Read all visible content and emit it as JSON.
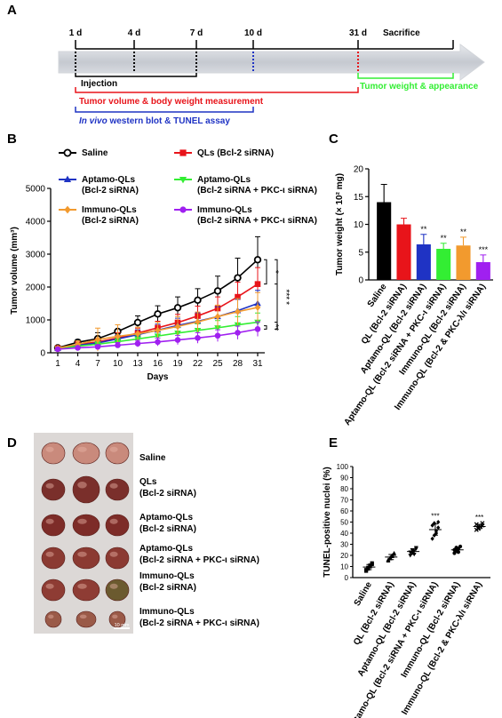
{
  "panel_labels": {
    "a": "A",
    "b": "B",
    "c": "C",
    "d": "D",
    "e": "E"
  },
  "colors": {
    "saline": "#000000",
    "qls": "#e8141a",
    "aptamo": "#1f33c4",
    "aptamo_pkc": "#33ee33",
    "immuno": "#f29a2e",
    "immuno_pkc": "#a020f0",
    "injection": "#000000",
    "measurement": "#e8141a",
    "western": "#1f33c4",
    "tumor_weight": "#33ee33"
  },
  "timeline": {
    "days": [
      {
        "label": "1 d",
        "color": "#000000"
      },
      {
        "label": "4 d",
        "color": "#000000"
      },
      {
        "label": "7 d",
        "color": "#000000"
      },
      {
        "label": "10 d",
        "color": "#1f33c4"
      },
      {
        "label": "31 d",
        "color": "#e8141a"
      }
    ],
    "sacrifice": "Sacrifice",
    "injection": "Injection",
    "measurement": "Tumor volume & body weight measurement",
    "western_italic": "In vivo",
    "western_rest": " western blot & TUNEL assay",
    "tumor_weight": "Tumor weight & appearance"
  },
  "chart_data": [
    {
      "panel": "B",
      "type": "line",
      "xlabel": "Days",
      "ylabel": "Tumor volume (mm³)",
      "x": [
        1,
        4,
        7,
        10,
        13,
        16,
        19,
        22,
        25,
        28,
        31
      ],
      "ylim": [
        0,
        5000
      ],
      "yticks": [
        0,
        1000,
        2000,
        3000,
        4000,
        5000
      ],
      "series": [
        {
          "key": "saline",
          "name": "Saline",
          "legend": [
            "Saline"
          ],
          "color": "#000000",
          "marker": "open-circle",
          "values": [
            150,
            320,
            430,
            650,
            920,
            1180,
            1370,
            1600,
            1880,
            2280,
            2830
          ],
          "errors": [
            40,
            80,
            180,
            200,
            200,
            250,
            330,
            350,
            450,
            600,
            700
          ]
        },
        {
          "key": "qls",
          "name": "QLs (Bcl-2 siRNA)",
          "legend": [
            "QLs (Bcl-2 siRNA)"
          ],
          "color": "#e8141a",
          "marker": "square",
          "values": [
            140,
            250,
            330,
            450,
            600,
            760,
            920,
            1120,
            1350,
            1700,
            2090
          ],
          "errors": [
            30,
            60,
            100,
            160,
            150,
            200,
            250,
            300,
            350,
            450,
            500
          ]
        },
        {
          "key": "aptamo",
          "name": "Aptamo-QLs (Bcl-2 siRNA)",
          "legend": [
            "Aptamo-QLs",
            "(Bcl-2 siRNA)"
          ],
          "color": "#1f33c4",
          "marker": "triangle",
          "values": [
            130,
            230,
            300,
            420,
            550,
            690,
            830,
            960,
            1100,
            1280,
            1500
          ],
          "errors": [
            30,
            60,
            80,
            120,
            150,
            180,
            220,
            260,
            300,
            350,
            400
          ]
        },
        {
          "key": "aptamo_pkc",
          "name": "Aptamo-QLs (Bcl-2 siRNA + PKC-ι siRNA)",
          "legend": [
            "Aptamo-QLs",
            "(Bcl-2 siRNA + PKC-ι siRNA)"
          ],
          "color": "#33ee33",
          "marker": "down-triangle",
          "values": [
            120,
            200,
            260,
            340,
            420,
            510,
            600,
            680,
            760,
            850,
            930
          ],
          "errors": [
            30,
            50,
            80,
            100,
            120,
            150,
            170,
            200,
            220,
            250,
            280
          ]
        },
        {
          "key": "immuno",
          "name": "Immuno-QLs (Bcl-2 siRNA)",
          "legend": [
            "Immuno-QLs",
            "(Bcl-2 siRNA)"
          ],
          "color": "#f29a2e",
          "marker": "diamond",
          "values": [
            140,
            260,
            400,
            500,
            580,
            680,
            800,
            940,
            1100,
            1250,
            1380
          ],
          "errors": [
            40,
            100,
            350,
            350,
            200,
            250,
            300,
            300,
            350,
            400,
            450
          ]
        },
        {
          "key": "immuno_pkc",
          "name": "Immuno-QLs (Bcl-2 siRNA + PKC-ι siRNA)",
          "legend": [
            "Immuno-QLs",
            "(Bcl-2 siRNA + PKC-ι siRNA)"
          ],
          "color": "#a020f0",
          "marker": "circle",
          "values": [
            110,
            150,
            180,
            230,
            280,
            330,
            390,
            450,
            520,
            610,
            720
          ],
          "errors": [
            30,
            40,
            60,
            80,
            100,
            120,
            140,
            160,
            180,
            200,
            220
          ]
        }
      ],
      "significance": [
        "*",
        "***",
        "**",
        "*"
      ]
    },
    {
      "panel": "C",
      "type": "bar",
      "ylabel": "Tumor weight (× 10² mg)",
      "ylim": [
        0,
        20
      ],
      "yticks": [
        0,
        5,
        10,
        15,
        20
      ],
      "categories": [
        "Saline",
        "QL (Bcl-2 siRNA)",
        "Aptamo-QL (Bcl-2 siRNA)",
        "Aptamo-QL (Bcl-2 siRNA + PKC-ι siRNA)",
        "Immuno-QL (Bcl-2 siRNA)",
        "Immuno-QL (Bcl-2 & PKC-λ/ι siRNA)"
      ],
      "values": [
        14.0,
        10.0,
        6.4,
        5.6,
        6.2,
        3.2
      ],
      "errors": [
        3.2,
        1.1,
        1.8,
        1.0,
        1.5,
        1.3
      ],
      "colors": [
        "#000000",
        "#e8141a",
        "#1f33c4",
        "#33ee33",
        "#f29a2e",
        "#a020f0"
      ],
      "stars": [
        "",
        "",
        "**",
        "**",
        "**",
        "***"
      ]
    },
    {
      "panel": "E",
      "type": "scatter",
      "ylabel": "TUNEL-positive nuclei (%)",
      "ylim": [
        0,
        100
      ],
      "yticks": [
        0,
        10,
        20,
        30,
        40,
        50,
        60,
        70,
        80,
        90,
        100
      ],
      "categories": [
        "Saline",
        "QL (Bcl-2 siRNA)",
        "Aptamo-QL (Bcl-2 siRNA)",
        "Aptamo-QL (Bcl-2 siRNA + PKC-ι siRNA)",
        "Immuno-QL (Bcl-2 siRNA)",
        "Immuno-QL (Bcl-2 & PKC-λ/ι siRNA)"
      ],
      "markers": [
        "square",
        "triangle",
        "down-triangle",
        "diamond",
        "circle",
        "x"
      ],
      "points": [
        [
          6,
          8,
          10,
          12,
          7,
          9,
          11,
          13
        ],
        [
          15,
          17,
          19,
          21,
          16,
          18,
          20,
          22
        ],
        [
          20,
          22,
          24,
          26,
          23,
          25,
          21,
          27
        ],
        [
          35,
          38,
          42,
          45,
          47,
          49,
          40,
          50
        ],
        [
          22,
          24,
          26,
          28,
          25,
          27,
          23
        ],
        [
          43,
          45,
          46,
          47,
          48,
          44,
          46,
          49
        ]
      ],
      "stars": [
        "",
        "",
        "",
        "***",
        "",
        "***"
      ]
    }
  ],
  "panel_d": {
    "scale_bar": "10 mm",
    "rows": [
      {
        "lines": [
          "Saline"
        ]
      },
      {
        "lines": [
          "QLs",
          "(Bcl-2 siRNA)"
        ]
      },
      {
        "lines": [
          "Aptamo-QLs",
          "(Bcl-2 siRNA)"
        ]
      },
      {
        "lines": [
          "Aptamo-QLs",
          "(Bcl-2 siRNA + PKC-ι siRNA)"
        ]
      },
      {
        "lines": [
          "Immuno-QLs",
          "(Bcl-2 siRNA)"
        ]
      },
      {
        "lines": [
          "Immuno-QLs",
          "(Bcl-2 siRNA + PKC-ι siRNA)"
        ]
      }
    ]
  }
}
